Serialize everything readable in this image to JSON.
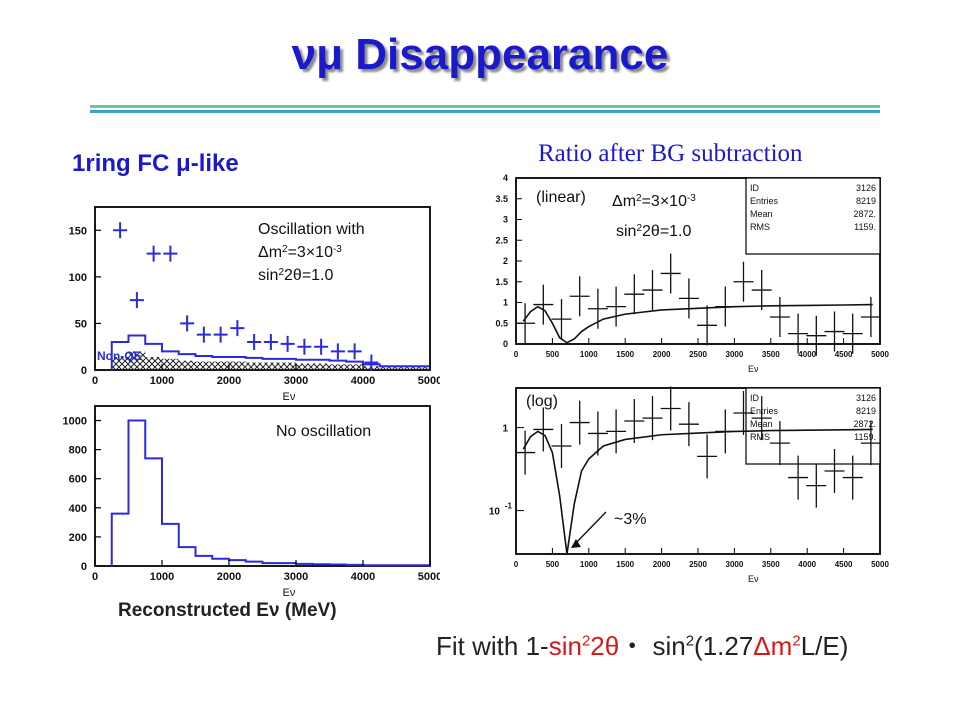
{
  "title": {
    "nu_mu": "νμ",
    "text": "Disappearance"
  },
  "left_heading": {
    "prefix": "1ring FC ",
    "mu": "μ",
    "suffix": "-like"
  },
  "right_heading": "Ratio after BG subtraction",
  "x_axis_title": "Reconstructed Eν (MeV)",
  "formula": {
    "pre": "Fit with 1-",
    "sin_red": "sin",
    "sup_red": "2",
    "theta_part": "2θ",
    "dot": "・ ",
    "rest_1": "sin",
    "sup_1": "2",
    "rest_2": "(1.27",
    "delta": "Δ",
    "rest_3": "m",
    "sup_2": "2",
    "rest_4": "L/E)"
  },
  "colors": {
    "title_blue": "#1a1acc",
    "data_blue": "#2a2ae0",
    "red": "#d41a1a"
  },
  "chart_data": [
    {
      "type": "bar",
      "panel": "top-left",
      "xlim": [
        0,
        5000
      ],
      "ylim": [
        0,
        175
      ],
      "x_ticks": [
        "0",
        "1000",
        "2000",
        "3000",
        "4000",
        "5000"
      ],
      "y_ticks": [
        "0",
        "50",
        "100",
        "150"
      ],
      "x_label": "Eν",
      "annotation_lines": [
        "Oscillation with",
        "Δm2=3×10-3",
        "sin22θ=1.0"
      ],
      "bg_label": "Non-QE",
      "bin_edges": [
        250,
        500,
        750,
        1000,
        1250,
        1500,
        1750,
        2000,
        2250,
        2500,
        2750,
        3000,
        3250,
        3500,
        3750,
        4000,
        4250,
        5000
      ],
      "mc_oscillated": [
        30,
        37,
        28,
        20,
        17,
        15,
        14,
        14,
        13,
        12,
        12,
        11,
        11,
        10,
        9,
        6,
        4
      ],
      "non_qe_background": [
        14,
        20,
        14,
        12,
        10,
        9,
        9,
        9,
        8,
        8,
        8,
        7,
        7,
        6,
        6,
        4,
        3
      ],
      "data_points": {
        "x": [
          375,
          625,
          875,
          1125,
          1375,
          1625,
          1875,
          2125,
          2375,
          2625,
          2875,
          3125,
          3375,
          3625,
          3875,
          4125
        ],
        "y": [
          150,
          75,
          125,
          125,
          50,
          38,
          38,
          45,
          30,
          30,
          28,
          25,
          25,
          20,
          20,
          8
        ]
      }
    },
    {
      "type": "bar",
      "panel": "bottom-left",
      "xlim": [
        0,
        5000
      ],
      "ylim": [
        0,
        1100
      ],
      "x_ticks": [
        "0",
        "1000",
        "2000",
        "3000",
        "4000",
        "5000"
      ],
      "y_ticks": [
        "0",
        "200",
        "400",
        "600",
        "800",
        "1000"
      ],
      "x_label": "Eν",
      "annotation_lines": [
        "No oscillation"
      ],
      "bin_edges": [
        250,
        500,
        750,
        1000,
        1250,
        1500,
        1750,
        2000,
        2250,
        2500,
        2750,
        3000,
        3250,
        3500,
        3750,
        4000,
        5000
      ],
      "values": [
        360,
        1000,
        740,
        290,
        130,
        70,
        50,
        40,
        30,
        20,
        20,
        15,
        12,
        10,
        8,
        5
      ]
    },
    {
      "type": "line",
      "panel": "top-right",
      "scale": "linear",
      "annotation": "(linear)",
      "param_lines": [
        "Δm2=3×10-3",
        "sin22θ=1.0"
      ],
      "xlim": [
        0,
        5000
      ],
      "ylim": [
        0,
        4
      ],
      "x_ticks": [
        "0",
        "500",
        "1000",
        "1500",
        "2000",
        "2500",
        "3000",
        "3500",
        "4000",
        "4500",
        "5000"
      ],
      "y_ticks": [
        "0",
        "0.5",
        "1",
        "1.5",
        "2",
        "2.5",
        "3",
        "3.5",
        "4"
      ],
      "x_label": "Eν",
      "stats_box": [
        [
          "ID",
          "3126"
        ],
        [
          "Entries",
          "8219"
        ],
        [
          "Mean",
          "2872."
        ],
        [
          "RMS",
          "1159."
        ]
      ],
      "fit_curve": {
        "x": [
          100,
          200,
          300,
          400,
          500,
          600,
          700,
          800,
          900,
          1000,
          1200,
          1500,
          2000,
          2500,
          3000,
          3500,
          4000,
          4500,
          4900
        ],
        "y": [
          0.55,
          0.78,
          0.9,
          0.8,
          0.5,
          0.15,
          0.03,
          0.12,
          0.3,
          0.42,
          0.6,
          0.72,
          0.82,
          0.86,
          0.9,
          0.92,
          0.93,
          0.94,
          0.95
        ]
      },
      "data_points": {
        "x": [
          125,
          375,
          625,
          875,
          1125,
          1375,
          1625,
          1875,
          2125,
          2375,
          2625,
          2875,
          3125,
          3375,
          3625,
          3875,
          4125,
          4375,
          4625,
          4875
        ],
        "y": [
          0.5,
          0.95,
          0.6,
          1.15,
          0.85,
          0.9,
          1.2,
          1.3,
          1.7,
          1.1,
          0.45,
          0.9,
          1.5,
          1.3,
          0.65,
          0.25,
          0.2,
          0.3,
          0.25,
          0.65
        ]
      }
    },
    {
      "type": "line",
      "panel": "bottom-right",
      "scale": "log",
      "annotation": "(log)",
      "callout": "~3%",
      "xlim": [
        0,
        5000
      ],
      "ylim": [
        0.03,
        3
      ],
      "x_ticks": [
        "0",
        "500",
        "1000",
        "1500",
        "2000",
        "2500",
        "3000",
        "3500",
        "4000",
        "4500",
        "5000"
      ],
      "y_ticks": [
        "1",
        "10-1"
      ],
      "x_label": "Eν",
      "stats_box": [
        [
          "ID",
          "3126"
        ],
        [
          "Entries",
          "8219"
        ],
        [
          "Mean",
          "2872."
        ],
        [
          "RMS",
          "1159."
        ]
      ],
      "fit_curve": {
        "x": [
          100,
          200,
          300,
          400,
          500,
          600,
          700,
          800,
          900,
          1000,
          1200,
          1500,
          2000,
          2500,
          3000,
          3500,
          4000,
          4500,
          4900
        ],
        "y": [
          0.55,
          0.78,
          0.9,
          0.8,
          0.5,
          0.15,
          0.03,
          0.12,
          0.3,
          0.42,
          0.6,
          0.72,
          0.82,
          0.86,
          0.9,
          0.92,
          0.93,
          0.94,
          0.95
        ]
      },
      "data_points": {
        "x": [
          125,
          375,
          625,
          875,
          1125,
          1375,
          1625,
          1875,
          2125,
          2375,
          2625,
          2875,
          3125,
          3375,
          3625,
          3875,
          4125,
          4375,
          4625,
          4875
        ],
        "y": [
          0.5,
          0.95,
          0.6,
          1.15,
          0.85,
          0.9,
          1.2,
          1.3,
          1.7,
          1.1,
          0.45,
          0.9,
          1.5,
          1.3,
          0.65,
          0.25,
          0.2,
          0.3,
          0.25,
          0.65
        ]
      }
    }
  ]
}
